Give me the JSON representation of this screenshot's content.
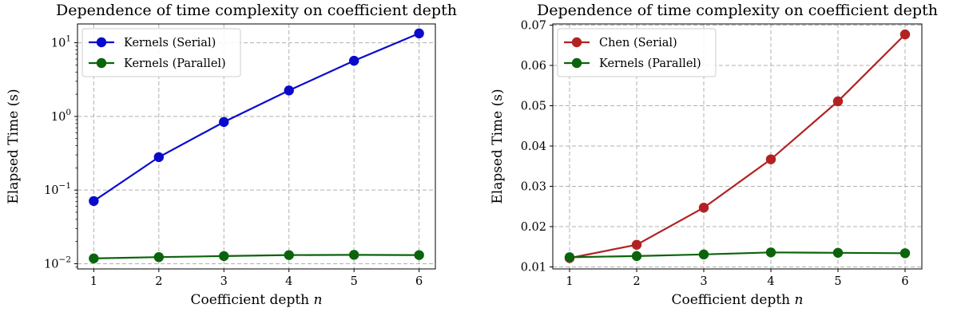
{
  "chart_data": [
    {
      "type": "line",
      "title": "Dependence of time complexity on coefficient depth",
      "xlabel": "Coefficient depth",
      "xlabel_var": "n",
      "ylabel": "Elapsed Time (s)",
      "yscale": "log",
      "xlim": [
        0.75,
        6.25
      ],
      "ylim": [
        0.0085,
        18
      ],
      "grid": true,
      "legend": "top-left",
      "x": [
        1,
        2,
        3,
        4,
        5,
        6
      ],
      "xticks": [
        {
          "value": 1,
          "label": "1"
        },
        {
          "value": 2,
          "label": "2"
        },
        {
          "value": 3,
          "label": "3"
        },
        {
          "value": 4,
          "label": "4"
        },
        {
          "value": 5,
          "label": "5"
        },
        {
          "value": 6,
          "label": "6"
        }
      ],
      "yticks": [
        {
          "value": 0.01,
          "base": "10",
          "exp": "−2"
        },
        {
          "value": 0.1,
          "base": "10",
          "exp": "−1"
        },
        {
          "value": 1,
          "base": "10",
          "exp": "0"
        },
        {
          "value": 10,
          "base": "10",
          "exp": "1"
        }
      ],
      "series": [
        {
          "name": "Kernels (Serial)",
          "color": "#0a0acc",
          "values": [
            0.071,
            0.28,
            0.84,
            2.25,
            5.7,
            13.4
          ]
        },
        {
          "name": "Kernels (Parallel)",
          "color": "#0b640b",
          "values": [
            0.0118,
            0.0123,
            0.0127,
            0.0131,
            0.0132,
            0.0131
          ]
        }
      ]
    },
    {
      "type": "line",
      "title": "Dependence of time complexity on coefficient depth",
      "xlabel": "Coefficient depth",
      "xlabel_var": "n",
      "ylabel": "Elapsed Time (s)",
      "yscale": "linear",
      "xlim": [
        0.75,
        6.25
      ],
      "ylim": [
        0.0095,
        0.0703
      ],
      "grid": true,
      "legend": "top-left",
      "x": [
        1,
        2,
        3,
        4,
        5,
        6
      ],
      "xticks": [
        {
          "value": 1,
          "label": "1"
        },
        {
          "value": 2,
          "label": "2"
        },
        {
          "value": 3,
          "label": "3"
        },
        {
          "value": 4,
          "label": "4"
        },
        {
          "value": 5,
          "label": "5"
        },
        {
          "value": 6,
          "label": "6"
        }
      ],
      "yticks": [
        {
          "value": 0.01,
          "label": "0.01"
        },
        {
          "value": 0.02,
          "label": "0.02"
        },
        {
          "value": 0.03,
          "label": "0.03"
        },
        {
          "value": 0.04,
          "label": "0.04"
        },
        {
          "value": 0.05,
          "label": "0.05"
        },
        {
          "value": 0.06,
          "label": "0.06"
        },
        {
          "value": 0.07,
          "label": "0.07"
        }
      ],
      "series": [
        {
          "name": "Chen (Serial)",
          "color": "#b22222",
          "values": [
            0.0122,
            0.0155,
            0.0247,
            0.0367,
            0.0511,
            0.0677
          ]
        },
        {
          "name": "Kernels (Parallel)",
          "color": "#0b640b",
          "values": [
            0.0124,
            0.0127,
            0.0131,
            0.0136,
            0.0135,
            0.0134
          ]
        }
      ]
    }
  ]
}
